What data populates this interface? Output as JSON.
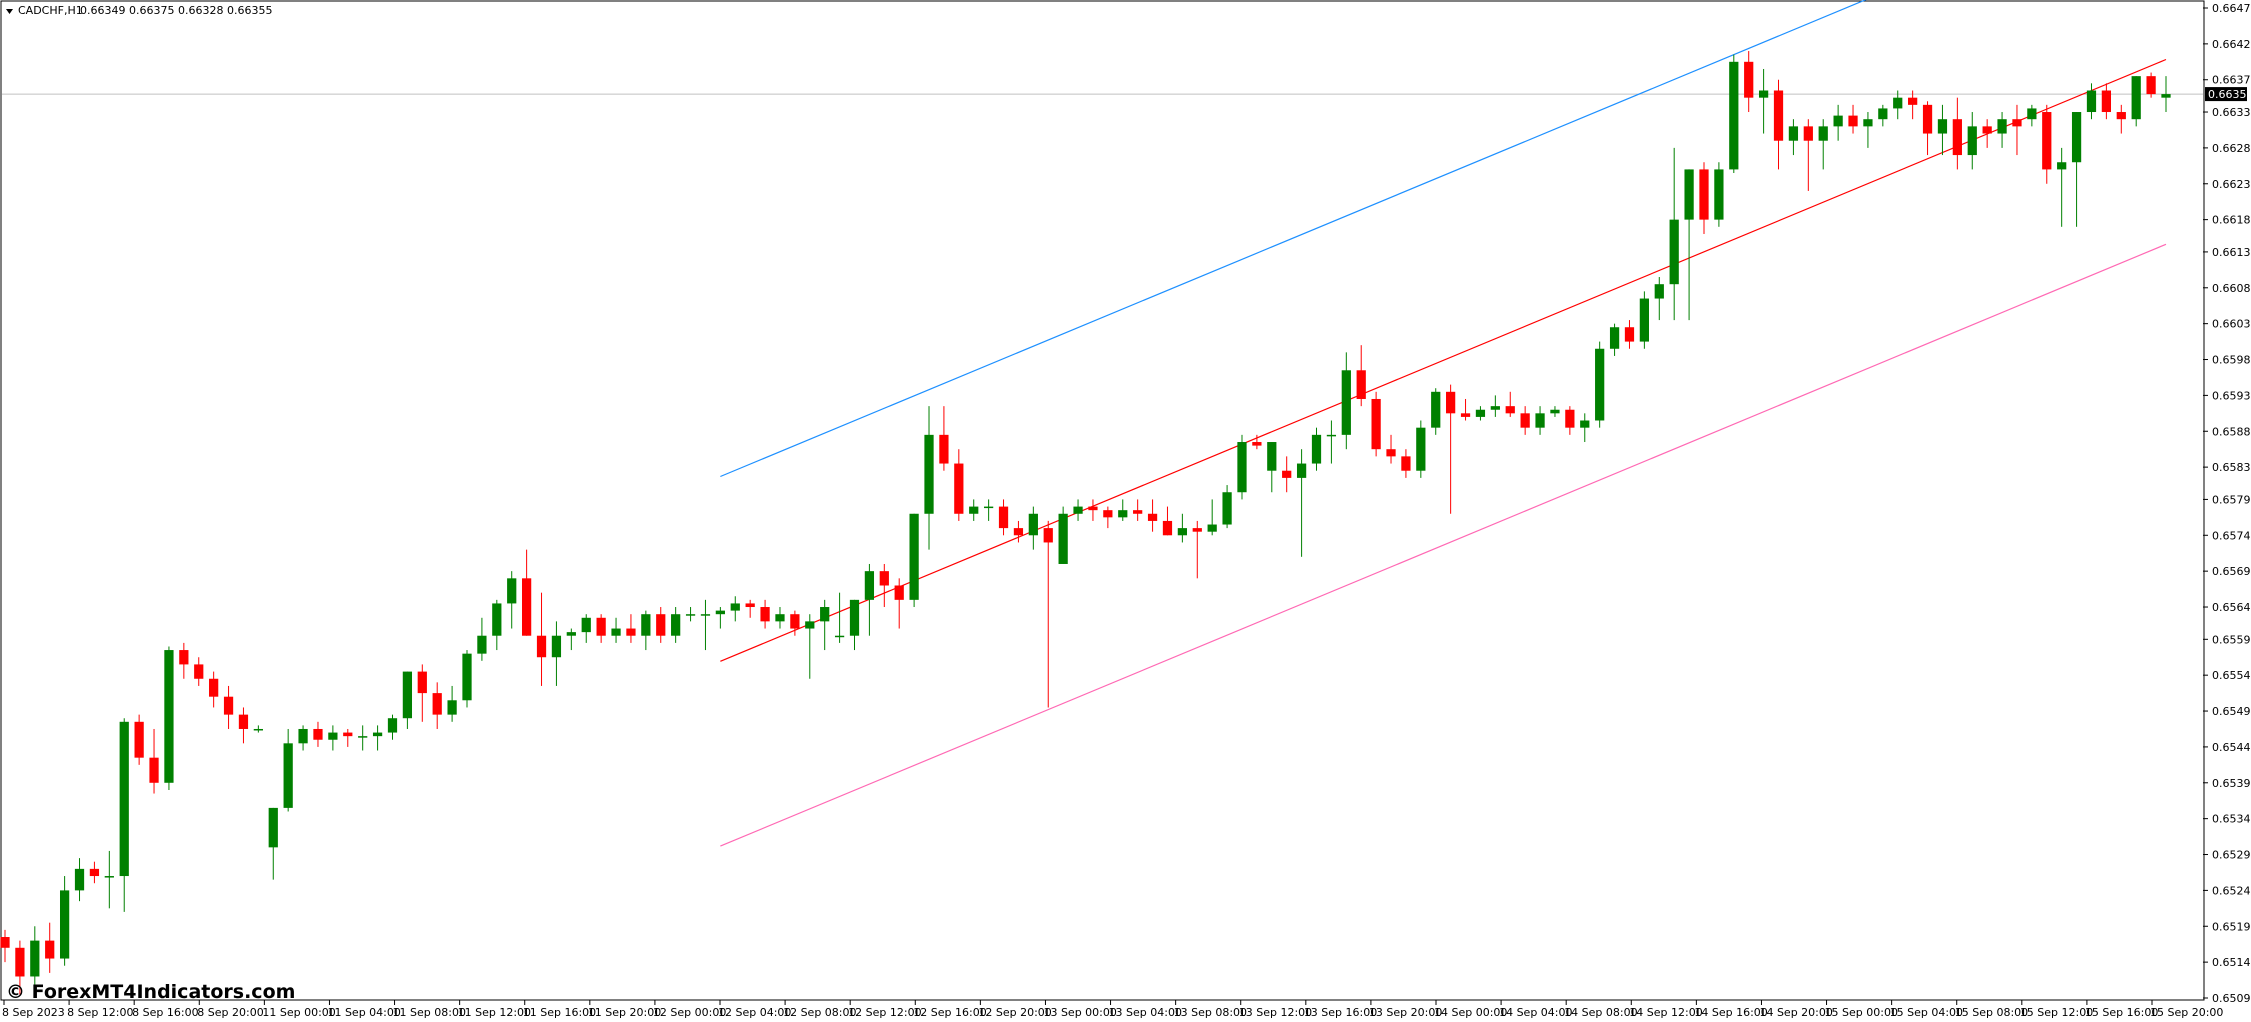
{
  "header": {
    "symbol_title": "CADCHF,H1",
    "ohlc": "0.66349 0.66375 0.66328 0.66355",
    "arrow_icon": "triangle-down-icon"
  },
  "watermark": {
    "text": "© ForexMT4Indicators.com"
  },
  "colors": {
    "bull": "#008000",
    "bear": "#ff0000",
    "upper_channel": "#1e90ff",
    "middle_channel": "#ff0000",
    "lower_channel": "#ff69b4",
    "grid": "#c0c0c0",
    "price_badge_bg": "#000000",
    "price_badge_text": "#ffffff"
  },
  "chart_data": {
    "type": "candlestick",
    "symbol": "CADCHF",
    "timeframe": "H1",
    "ylim": [
      0.65095,
      0.66475
    ],
    "y_ticks": [
      "0.66475",
      "0.66425",
      "0.66375",
      "0.66330",
      "0.66280",
      "0.66230",
      "0.66180",
      "0.66135",
      "0.66085",
      "0.66035",
      "0.65985",
      "0.65935",
      "0.65885",
      "0.65835",
      "0.65790",
      "0.65740",
      "0.65690",
      "0.65640",
      "0.65595",
      "0.65545",
      "0.65495",
      "0.65445",
      "0.65395",
      "0.65345",
      "0.65295",
      "0.65245",
      "0.65195",
      "0.65145",
      "0.65095"
    ],
    "current_price": "0.66355",
    "x_ticks": [
      "8 Sep 2023",
      "8 Sep 12:00",
      "8 Sep 16:00",
      "8 Sep 20:00",
      "11 Sep 00:00",
      "11 Sep 04:00",
      "11 Sep 08:00",
      "11 Sep 12:00",
      "11 Sep 16:00",
      "11 Sep 20:00",
      "12 Sep 00:00",
      "12 Sep 04:00",
      "12 Sep 08:00",
      "12 Sep 12:00",
      "12 Sep 16:00",
      "12 Sep 20:00",
      "13 Sep 00:00",
      "13 Sep 04:00",
      "13 Sep 08:00",
      "13 Sep 12:00",
      "13 Sep 16:00",
      "13 Sep 20:00",
      "14 Sep 00:00",
      "14 Sep 04:00",
      "14 Sep 08:00",
      "14 Sep 12:00",
      "14 Sep 16:00",
      "14 Sep 20:00",
      "15 Sep 00:00",
      "15 Sep 04:00",
      "15 Sep 08:00",
      "15 Sep 12:00",
      "15 Sep 16:00",
      "15 Sep 20:00"
    ],
    "candles": [
      [
        0.6518,
        0.6519,
        0.65145,
        0.65165
      ],
      [
        0.65165,
        0.65175,
        0.651,
        0.65125
      ],
      [
        0.65125,
        0.65195,
        0.6511,
        0.65175
      ],
      [
        0.65175,
        0.652,
        0.6513,
        0.6515
      ],
      [
        0.6515,
        0.65265,
        0.6514,
        0.65245
      ],
      [
        0.65245,
        0.6529,
        0.6523,
        0.65275
      ],
      [
        0.65275,
        0.65285,
        0.65255,
        0.65265
      ],
      [
        0.65265,
        0.653,
        0.6522,
        0.65265
      ],
      [
        0.65265,
        0.65485,
        0.65215,
        0.6548
      ],
      [
        0.6548,
        0.6549,
        0.6542,
        0.6543
      ],
      [
        0.6543,
        0.6547,
        0.6538,
        0.65395
      ],
      [
        0.65395,
        0.65585,
        0.65385,
        0.6558
      ],
      [
        0.6558,
        0.6559,
        0.6554,
        0.6556
      ],
      [
        0.6556,
        0.6557,
        0.6553,
        0.6554
      ],
      [
        0.6554,
        0.6555,
        0.655,
        0.65515
      ],
      [
        0.65515,
        0.6553,
        0.6547,
        0.6549
      ],
      [
        0.6549,
        0.655,
        0.6545,
        0.6547
      ],
      [
        0.6547,
        0.65475,
        0.65465,
        0.6547
      ],
      [
        0.65305,
        0.6536,
        0.6526,
        0.6536
      ],
      [
        0.6536,
        0.6547,
        0.65355,
        0.6545
      ],
      [
        0.6545,
        0.65475,
        0.6544,
        0.6547
      ],
      [
        0.6547,
        0.6548,
        0.65445,
        0.65455
      ],
      [
        0.65455,
        0.65475,
        0.6544,
        0.65465
      ],
      [
        0.65465,
        0.6547,
        0.65445,
        0.6546
      ],
      [
        0.6546,
        0.65475,
        0.6544,
        0.6546
      ],
      [
        0.6546,
        0.65475,
        0.6544,
        0.65465
      ],
      [
        0.65465,
        0.6549,
        0.65455,
        0.65485
      ],
      [
        0.65485,
        0.6555,
        0.6547,
        0.6555
      ],
      [
        0.6555,
        0.6556,
        0.6548,
        0.6552
      ],
      [
        0.6552,
        0.65535,
        0.6547,
        0.6549
      ],
      [
        0.6549,
        0.6553,
        0.6548,
        0.6551
      ],
      [
        0.6551,
        0.6558,
        0.655,
        0.65575
      ],
      [
        0.65575,
        0.65625,
        0.65565,
        0.656
      ],
      [
        0.656,
        0.6565,
        0.6558,
        0.65645
      ],
      [
        0.65645,
        0.6569,
        0.6561,
        0.6568
      ],
      [
        0.6568,
        0.6572,
        0.656,
        0.656
      ],
      [
        0.656,
        0.6566,
        0.6553,
        0.6557
      ],
      [
        0.6557,
        0.6562,
        0.6553,
        0.656
      ],
      [
        0.656,
        0.6561,
        0.6558,
        0.65605
      ],
      [
        0.65605,
        0.6563,
        0.6559,
        0.65625
      ],
      [
        0.65625,
        0.6563,
        0.6559,
        0.656
      ],
      [
        0.656,
        0.65625,
        0.6559,
        0.6561
      ],
      [
        0.6561,
        0.6563,
        0.6559,
        0.656
      ],
      [
        0.656,
        0.65635,
        0.6558,
        0.6563
      ],
      [
        0.6563,
        0.6564,
        0.6559,
        0.656
      ],
      [
        0.656,
        0.6564,
        0.6559,
        0.6563
      ],
      [
        0.6563,
        0.6564,
        0.6562,
        0.6563
      ],
      [
        0.6563,
        0.6565,
        0.6558,
        0.6563
      ],
      [
        0.6563,
        0.6564,
        0.6561,
        0.65635
      ],
      [
        0.65635,
        0.65655,
        0.6562,
        0.65645
      ],
      [
        0.65645,
        0.6565,
        0.65625,
        0.6564
      ],
      [
        0.6564,
        0.6565,
        0.6561,
        0.6562
      ],
      [
        0.6562,
        0.6564,
        0.6561,
        0.6563
      ],
      [
        0.6563,
        0.65635,
        0.656,
        0.6561
      ],
      [
        0.6561,
        0.6563,
        0.6554,
        0.6562
      ],
      [
        0.6562,
        0.6565,
        0.6558,
        0.6564
      ],
      [
        0.656,
        0.6566,
        0.6559,
        0.656
      ],
      [
        0.656,
        0.6565,
        0.6558,
        0.6565
      ],
      [
        0.6565,
        0.657,
        0.656,
        0.6569
      ],
      [
        0.6569,
        0.657,
        0.6564,
        0.6567
      ],
      [
        0.6567,
        0.6568,
        0.6561,
        0.6565
      ],
      [
        0.6565,
        0.6577,
        0.6564,
        0.6577
      ],
      [
        0.6577,
        0.6592,
        0.6572,
        0.6588
      ],
      [
        0.6588,
        0.6592,
        0.6583,
        0.6584
      ],
      [
        0.6584,
        0.6586,
        0.6576,
        0.6577
      ],
      [
        0.6577,
        0.6579,
        0.6576,
        0.6578
      ],
      [
        0.6578,
        0.6579,
        0.6576,
        0.6578
      ],
      [
        0.6578,
        0.6579,
        0.6574,
        0.6575
      ],
      [
        0.6575,
        0.6576,
        0.6573,
        0.6574
      ],
      [
        0.6574,
        0.6578,
        0.6572,
        0.6577
      ],
      [
        0.6575,
        0.6576,
        0.655,
        0.6573
      ],
      [
        0.657,
        0.6578,
        0.657,
        0.6577
      ],
      [
        0.6577,
        0.6579,
        0.6576,
        0.6578
      ],
      [
        0.6578,
        0.6579,
        0.6576,
        0.65775
      ],
      [
        0.65775,
        0.6578,
        0.6575,
        0.65765
      ],
      [
        0.65765,
        0.6579,
        0.6576,
        0.65775
      ],
      [
        0.65775,
        0.6579,
        0.6576,
        0.6577
      ],
      [
        0.6577,
        0.6579,
        0.65745,
        0.6576
      ],
      [
        0.6576,
        0.6578,
        0.6574,
        0.6574
      ],
      [
        0.6574,
        0.6577,
        0.6573,
        0.6575
      ],
      [
        0.6575,
        0.6576,
        0.6568,
        0.65745
      ],
      [
        0.65745,
        0.6579,
        0.6574,
        0.65755
      ],
      [
        0.65755,
        0.6581,
        0.6575,
        0.658
      ],
      [
        0.658,
        0.6588,
        0.6579,
        0.6587
      ],
      [
        0.6587,
        0.6588,
        0.6586,
        0.65865
      ],
      [
        0.6583,
        0.6587,
        0.658,
        0.6587
      ],
      [
        0.6583,
        0.6585,
        0.658,
        0.6582
      ],
      [
        0.6582,
        0.6586,
        0.6571,
        0.6584
      ],
      [
        0.6584,
        0.6589,
        0.6583,
        0.6588
      ],
      [
        0.6588,
        0.659,
        0.6584,
        0.6588
      ],
      [
        0.6588,
        0.65995,
        0.6586,
        0.6597
      ],
      [
        0.6597,
        0.66005,
        0.6592,
        0.6593
      ],
      [
        0.6593,
        0.6594,
        0.6585,
        0.6586
      ],
      [
        0.6586,
        0.6588,
        0.6584,
        0.6585
      ],
      [
        0.6585,
        0.6586,
        0.6582,
        0.6583
      ],
      [
        0.6583,
        0.659,
        0.6582,
        0.6589
      ],
      [
        0.6589,
        0.65945,
        0.6588,
        0.6594
      ],
      [
        0.6594,
        0.6595,
        0.6577,
        0.6591
      ],
      [
        0.6591,
        0.6593,
        0.659,
        0.65905
      ],
      [
        0.65905,
        0.6592,
        0.659,
        0.65915
      ],
      [
        0.65915,
        0.65935,
        0.65905,
        0.6592
      ],
      [
        0.6592,
        0.6594,
        0.65905,
        0.6591
      ],
      [
        0.6591,
        0.6592,
        0.6588,
        0.6589
      ],
      [
        0.6589,
        0.6592,
        0.6588,
        0.6591
      ],
      [
        0.6591,
        0.6592,
        0.65905,
        0.65915
      ],
      [
        0.65915,
        0.6592,
        0.6588,
        0.6589
      ],
      [
        0.6589,
        0.6591,
        0.6587,
        0.659
      ],
      [
        0.659,
        0.6601,
        0.6589,
        0.66
      ],
      [
        0.66,
        0.66035,
        0.6599,
        0.6603
      ],
      [
        0.6603,
        0.6604,
        0.66,
        0.6601
      ],
      [
        0.6601,
        0.6608,
        0.66,
        0.6607
      ],
      [
        0.6607,
        0.661,
        0.6604,
        0.6609
      ],
      [
        0.6609,
        0.6628,
        0.6604,
        0.6618
      ],
      [
        0.6618,
        0.6625,
        0.6604,
        0.6625
      ],
      [
        0.6625,
        0.6626,
        0.6616,
        0.6618
      ],
      [
        0.6618,
        0.6626,
        0.6617,
        0.6625
      ],
      [
        0.6625,
        0.6641,
        0.66245,
        0.664
      ],
      [
        0.664,
        0.66415,
        0.6633,
        0.6635
      ],
      [
        0.6635,
        0.6639,
        0.663,
        0.6636
      ],
      [
        0.6636,
        0.66375,
        0.6625,
        0.6629
      ],
      [
        0.6629,
        0.6632,
        0.6627,
        0.6631
      ],
      [
        0.6631,
        0.6632,
        0.6622,
        0.6629
      ],
      [
        0.6629,
        0.6632,
        0.6625,
        0.6631
      ],
      [
        0.6631,
        0.6634,
        0.6629,
        0.66325
      ],
      [
        0.66325,
        0.6634,
        0.663,
        0.6631
      ],
      [
        0.6631,
        0.6633,
        0.6628,
        0.6632
      ],
      [
        0.6632,
        0.6634,
        0.6631,
        0.66335
      ],
      [
        0.66335,
        0.6636,
        0.6632,
        0.6635
      ],
      [
        0.6635,
        0.6636,
        0.6632,
        0.6634
      ],
      [
        0.6634,
        0.66345,
        0.6627,
        0.663
      ],
      [
        0.663,
        0.6634,
        0.6627,
        0.6632
      ],
      [
        0.6632,
        0.6635,
        0.6625,
        0.6627
      ],
      [
        0.6627,
        0.6633,
        0.6625,
        0.6631
      ],
      [
        0.6631,
        0.6632,
        0.6628,
        0.663
      ],
      [
        0.663,
        0.6633,
        0.6628,
        0.6632
      ],
      [
        0.6632,
        0.6634,
        0.6627,
        0.6631
      ],
      [
        0.6632,
        0.6634,
        0.6631,
        0.66335
      ],
      [
        0.6633,
        0.6634,
        0.6623,
        0.6625
      ],
      [
        0.6625,
        0.6628,
        0.6617,
        0.6626
      ],
      [
        0.6626,
        0.6633,
        0.6617,
        0.6633
      ],
      [
        0.6633,
        0.6637,
        0.6632,
        0.6636
      ],
      [
        0.6636,
        0.6637,
        0.6632,
        0.6633
      ],
      [
        0.6633,
        0.6634,
        0.663,
        0.6632
      ],
      [
        0.6632,
        0.6638,
        0.6631,
        0.6638
      ],
      [
        0.6638,
        0.66385,
        0.6635,
        0.66355
      ],
      [
        0.6635,
        0.6638,
        0.6633,
        0.66355
      ]
    ]
  }
}
